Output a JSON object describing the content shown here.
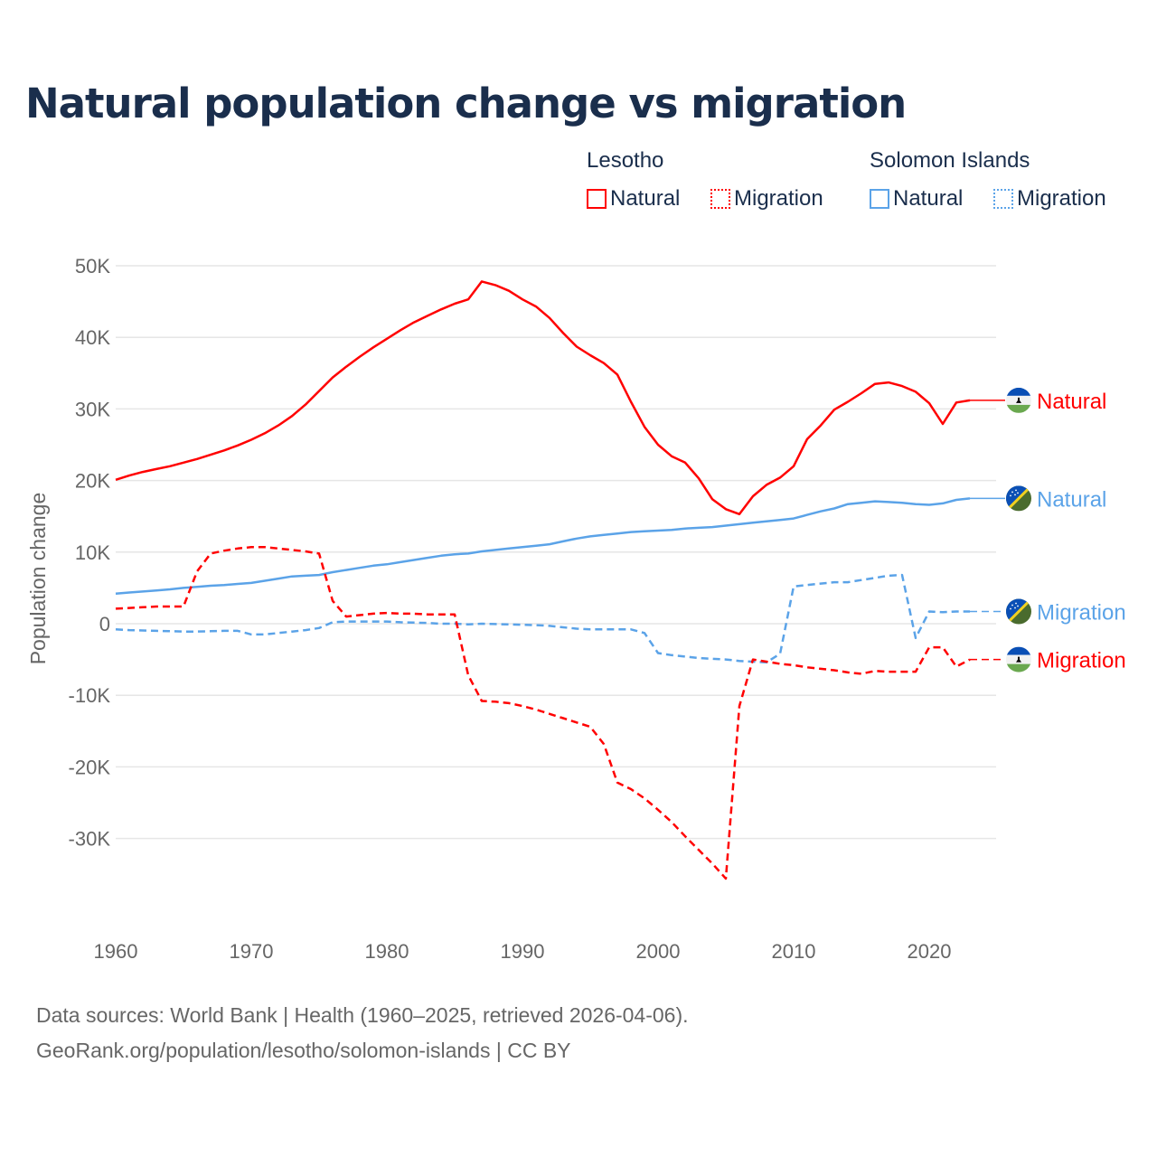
{
  "title": "Natural population change vs migration",
  "legend": {
    "groups": [
      {
        "country": "Lesotho",
        "items": [
          "Natural",
          "Migration"
        ],
        "color": "#ff0000"
      },
      {
        "country": "Solomon Islands",
        "items": [
          "Natural",
          "Migration"
        ],
        "color": "#5ba3e8"
      }
    ]
  },
  "source": {
    "line1": "Data sources: World Bank | Health (1960–2025, retrieved 2026-04-06).",
    "line2": "GeoRank.org/population/lesotho/solomon-islands | CC BY"
  },
  "chart_data": {
    "type": "line",
    "title": "Natural population change vs migration",
    "xlabel": "",
    "ylabel": "Population change",
    "xlim": [
      1960,
      2025
    ],
    "ylim": [
      -40000,
      50000
    ],
    "value_scale": 1000,
    "x_ticks": [
      "1960",
      "1970",
      "1980",
      "1990",
      "2000",
      "2010",
      "2020"
    ],
    "y_ticks": [
      {
        "v": 50,
        "label": "50K"
      },
      {
        "v": 40,
        "label": "40K"
      },
      {
        "v": 30,
        "label": "30K"
      },
      {
        "v": 20,
        "label": "20K"
      },
      {
        "v": 10,
        "label": "10K"
      },
      {
        "v": 0,
        "label": "0"
      },
      {
        "v": -10,
        "label": "-10K"
      },
      {
        "v": -20,
        "label": "-20K"
      },
      {
        "v": -30,
        "label": "-30K"
      }
    ],
    "grid": true,
    "x_start": 1960,
    "series": [
      {
        "name": "Lesotho Natural",
        "label": "Natural",
        "country": "Lesotho",
        "color": "#ff0000",
        "dashed": false,
        "flag": "lesotho",
        "values": [
          20.1,
          20.7,
          21.2,
          21.6,
          22.0,
          22.5,
          23.0,
          23.6,
          24.2,
          24.9,
          25.7,
          26.6,
          27.7,
          29.0,
          30.6,
          32.5,
          34.4,
          35.9,
          37.3,
          38.6,
          39.8,
          41.0,
          42.1,
          43.0,
          43.9,
          44.7,
          45.3,
          47.8,
          47.3,
          46.5,
          45.3,
          44.3,
          42.7,
          40.6,
          38.7,
          37.5,
          36.4,
          34.8,
          31.0,
          27.5,
          25.0,
          23.4,
          22.5,
          20.3,
          17.4,
          16.0,
          15.3,
          17.8,
          19.4,
          20.4,
          22.0,
          25.8,
          27.7,
          29.9,
          31.0,
          32.2,
          33.5,
          33.7,
          33.2,
          32.4,
          30.8,
          27.9,
          30.9,
          31.2
        ]
      },
      {
        "name": "Solomon Islands Natural",
        "label": "Natural",
        "country": "Solomon Islands",
        "color": "#5ba3e8",
        "dashed": false,
        "flag": "solomon",
        "values": [
          4.2,
          4.35,
          4.5,
          4.65,
          4.8,
          5.0,
          5.15,
          5.3,
          5.4,
          5.55,
          5.7,
          6.0,
          6.3,
          6.6,
          6.7,
          6.8,
          7.2,
          7.5,
          7.8,
          8.1,
          8.3,
          8.6,
          8.9,
          9.2,
          9.5,
          9.7,
          9.8,
          10.1,
          10.3,
          10.5,
          10.7,
          10.9,
          11.1,
          11.5,
          11.9,
          12.2,
          12.4,
          12.6,
          12.8,
          12.9,
          13.0,
          13.1,
          13.3,
          13.4,
          13.5,
          13.7,
          13.9,
          14.1,
          14.3,
          14.5,
          14.7,
          15.2,
          15.7,
          16.1,
          16.7,
          16.9,
          17.1,
          17.0,
          16.9,
          16.7,
          16.6,
          16.8,
          17.3,
          17.5
        ]
      },
      {
        "name": "Solomon Islands Migration",
        "label": "Migration",
        "country": "Solomon Islands",
        "color": "#5ba3e8",
        "dashed": true,
        "flag": "solomon",
        "values": [
          -0.8,
          -0.9,
          -0.95,
          -1.0,
          -1.05,
          -1.1,
          -1.1,
          -1.05,
          -1.0,
          -1.0,
          -1.5,
          -1.5,
          -1.3,
          -1.1,
          -0.9,
          -0.6,
          0.2,
          0.3,
          0.3,
          0.3,
          0.3,
          0.2,
          0.15,
          0.1,
          0.0,
          0.0,
          -0.1,
          0.0,
          -0.05,
          -0.1,
          -0.15,
          -0.2,
          -0.3,
          -0.5,
          -0.7,
          -0.8,
          -0.8,
          -0.8,
          -0.8,
          -1.3,
          -4.1,
          -4.4,
          -4.6,
          -4.8,
          -4.9,
          -5.0,
          -5.2,
          -5.3,
          -5.4,
          -4.2,
          5.2,
          5.4,
          5.6,
          5.8,
          5.8,
          6.1,
          6.4,
          6.7,
          6.8,
          -2.0,
          1.7,
          1.6,
          1.7,
          1.7
        ]
      },
      {
        "name": "Lesotho Migration",
        "label": "Migration",
        "country": "Lesotho",
        "color": "#ff0000",
        "dashed": true,
        "flag": "lesotho",
        "values": [
          2.1,
          2.2,
          2.3,
          2.4,
          2.4,
          2.4,
          7.3,
          9.8,
          10.2,
          10.5,
          10.7,
          10.7,
          10.5,
          10.3,
          10.1,
          9.8,
          3.2,
          1.0,
          1.2,
          1.4,
          1.5,
          1.4,
          1.4,
          1.3,
          1.3,
          1.3,
          -7.2,
          -10.8,
          -10.9,
          -11.1,
          -11.5,
          -12.0,
          -12.6,
          -13.2,
          -13.8,
          -14.4,
          -16.8,
          -22.2,
          -23.1,
          -24.4,
          -26.0,
          -27.7,
          -29.7,
          -31.6,
          -33.5,
          -35.6,
          -11.5,
          -5.0,
          -5.3,
          -5.6,
          -5.8,
          -6.1,
          -6.3,
          -6.5,
          -6.8,
          -7.0,
          -6.6,
          -6.7,
          -6.7,
          -6.7,
          -3.3,
          -3.3,
          -6.0,
          -5.0
        ]
      }
    ]
  }
}
